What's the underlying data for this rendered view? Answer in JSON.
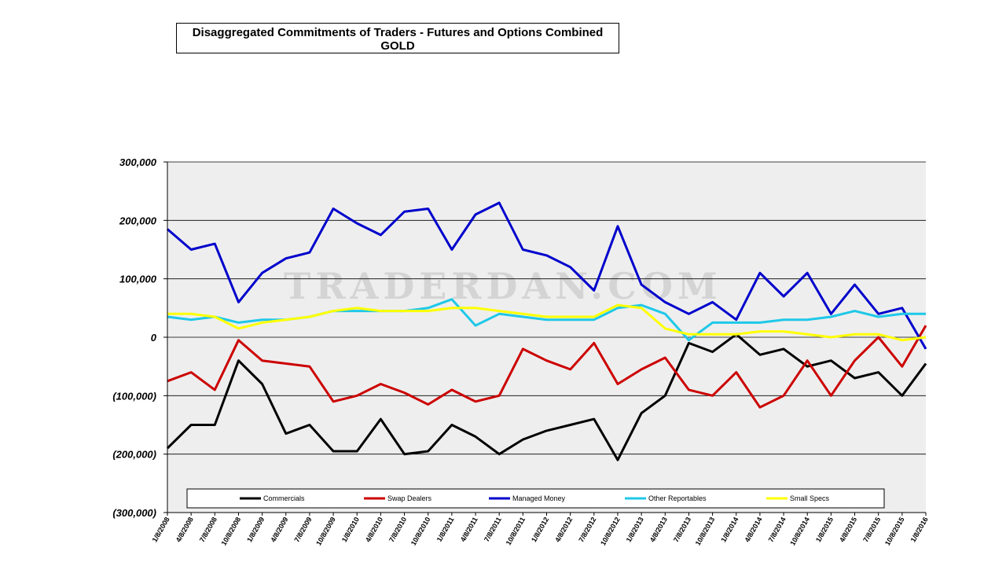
{
  "chart_data": {
    "type": "line",
    "title": "Disaggregated Commitments of Traders - Futures and Options Combined",
    "subtitle": "GOLD",
    "watermark": "TRADERDAN.COM",
    "xlabel": "",
    "ylabel": "",
    "ylim": [
      -300000,
      300000
    ],
    "y_ticks": [
      300000,
      200000,
      100000,
      0,
      -100000,
      -200000,
      -300000
    ],
    "y_tick_labels": [
      "300,000",
      "200,000",
      "100,000",
      "0",
      "(100,000)",
      "(200,000)",
      "(300,000)"
    ],
    "x_tick_labels": [
      "1/8/2008",
      "4/8/2008",
      "7/8/2008",
      "10/8/2008",
      "1/8/2009",
      "4/8/2009",
      "7/8/2009",
      "10/8/2009",
      "1/8/2010",
      "4/8/2010",
      "7/8/2010",
      "10/8/2010",
      "1/8/2011",
      "4/8/2011",
      "7/8/2011",
      "10/8/2011",
      "1/8/2012",
      "4/8/2012",
      "7/8/2012",
      "10/8/2012",
      "1/8/2013",
      "4/8/2013",
      "7/8/2013",
      "10/8/2013",
      "1/8/2014",
      "4/8/2014",
      "7/8/2014",
      "10/8/2014",
      "1/8/2015",
      "4/8/2015",
      "7/8/2015",
      "10/8/2015",
      "1/8/2016"
    ],
    "x": [
      "1/8/2008",
      "4/8/2008",
      "7/8/2008",
      "10/8/2008",
      "1/8/2009",
      "4/8/2009",
      "7/8/2009",
      "10/8/2009",
      "1/8/2010",
      "4/8/2010",
      "7/8/2010",
      "10/8/2010",
      "1/8/2011",
      "4/8/2011",
      "7/8/2011",
      "10/8/2011",
      "1/8/2012",
      "4/8/2012",
      "7/8/2012",
      "10/8/2012",
      "1/8/2013",
      "4/8/2013",
      "7/8/2013",
      "10/8/2013",
      "1/8/2014",
      "4/8/2014",
      "7/8/2014",
      "10/8/2014",
      "1/8/2015",
      "4/8/2015",
      "7/8/2015",
      "10/8/2015",
      "1/8/2016"
    ],
    "grid": true,
    "legend_position": "bottom",
    "background": "#eeeeee",
    "series": [
      {
        "name": "Commercials",
        "color": "#000000",
        "values": [
          -190000,
          -150000,
          -150000,
          -40000,
          -80000,
          -165000,
          -150000,
          -195000,
          -195000,
          -140000,
          -200000,
          -195000,
          -150000,
          -170000,
          -200000,
          -175000,
          -160000,
          -150000,
          -140000,
          -210000,
          -130000,
          -100000,
          -10000,
          -25000,
          5000,
          -30000,
          -20000,
          -50000,
          -40000,
          -70000,
          -60000,
          -100000,
          -45000
        ]
      },
      {
        "name": "Swap Dealers",
        "color": "#cc0000",
        "values": [
          -75000,
          -60000,
          -90000,
          -5000,
          -40000,
          -45000,
          -50000,
          -110000,
          -100000,
          -80000,
          -95000,
          -115000,
          -90000,
          -110000,
          -100000,
          -20000,
          -40000,
          -55000,
          -10000,
          -80000,
          -55000,
          -35000,
          -90000,
          -100000,
          -60000,
          -120000,
          -100000,
          -40000,
          -100000,
          -40000,
          0,
          -50000,
          20000
        ]
      },
      {
        "name": "Managed Money",
        "color": "#0000cc",
        "values": [
          185000,
          150000,
          160000,
          60000,
          110000,
          135000,
          145000,
          220000,
          195000,
          175000,
          215000,
          220000,
          150000,
          210000,
          230000,
          150000,
          140000,
          120000,
          80000,
          190000,
          90000,
          60000,
          40000,
          60000,
          30000,
          110000,
          70000,
          110000,
          40000,
          90000,
          40000,
          50000,
          -20000
        ]
      },
      {
        "name": "Other Reportables",
        "color": "#1ec8e8",
        "values": [
          35000,
          30000,
          35000,
          25000,
          30000,
          30000,
          35000,
          45000,
          45000,
          45000,
          45000,
          50000,
          65000,
          20000,
          40000,
          35000,
          30000,
          30000,
          30000,
          50000,
          55000,
          40000,
          -5000,
          25000,
          25000,
          25000,
          30000,
          30000,
          35000,
          45000,
          35000,
          40000,
          40000
        ]
      },
      {
        "name": "Small Specs",
        "color": "#ffff00",
        "values": [
          40000,
          40000,
          35000,
          15000,
          25000,
          30000,
          35000,
          45000,
          50000,
          45000,
          45000,
          45000,
          50000,
          50000,
          45000,
          40000,
          35000,
          35000,
          35000,
          55000,
          50000,
          15000,
          5000,
          5000,
          5000,
          10000,
          10000,
          5000,
          0,
          5000,
          5000,
          -5000,
          0
        ]
      }
    ]
  }
}
